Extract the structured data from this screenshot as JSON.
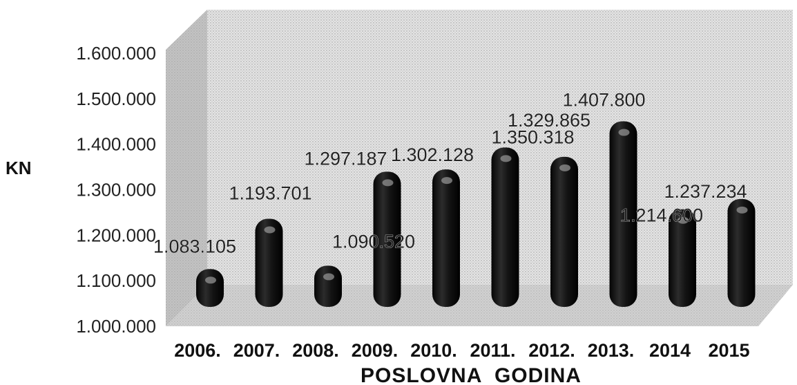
{
  "chart_data": {
    "type": "bar",
    "categories": [
      "2006.",
      "2007.",
      "2008.",
      "2009.",
      "2010.",
      "2011.",
      "2012.",
      "2013.",
      "2014",
      "2015"
    ],
    "values": [
      1083105,
      1193701,
      1090520,
      1297187,
      1302128,
      1350318,
      1329865,
      1407800,
      1214600,
      1237234
    ],
    "data_labels": [
      "1.083.105",
      "1.193.701",
      "1.090.520",
      "1.297.187",
      "1.302.128",
      "1.350.318",
      "1.329.865",
      "1.407.800",
      "1.214.600",
      "1.237.234"
    ],
    "ylabel": "KN",
    "xlabel": "POSLOVNA  GODINA",
    "ylim": [
      1000000,
      1600000
    ],
    "yticks": [
      1000000,
      1100000,
      1200000,
      1300000,
      1400000,
      1500000,
      1600000
    ],
    "ytick_labels": [
      "1.000.000",
      "1.100.000",
      "1.200.000",
      "1.300.000",
      "1.400.000",
      "1.500.000",
      "1.600.000"
    ],
    "style": "3d-cylinder",
    "grid": false,
    "legend": "none",
    "colors": {
      "bar": "#1a1a1a",
      "wall": "#d8d8d8",
      "side_wall": "#9a9a9a",
      "floor": "#b4b4b4"
    }
  }
}
